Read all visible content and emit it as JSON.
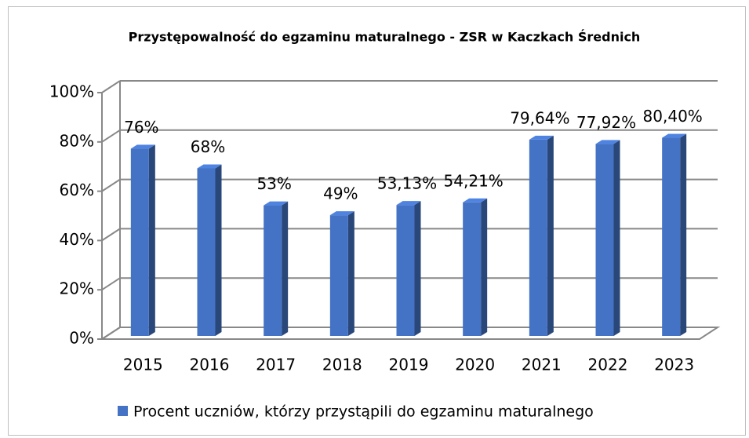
{
  "chart_data": {
    "type": "bar3d",
    "title": "Przystępowalność do egzaminu maturalnego - ZSR w Kaczkach Średnich",
    "categories": [
      "2015",
      "2016",
      "2017",
      "2018",
      "2019",
      "2020",
      "2021",
      "2022",
      "2023"
    ],
    "series": [
      {
        "name": "Procent uczniów, którzy przystąpili do egzaminu maturalnego",
        "color": "#4472c4",
        "values": [
          76,
          68,
          53,
          49,
          53.13,
          54.21,
          79.64,
          77.92,
          80.4
        ],
        "value_labels": [
          "76%",
          "68%",
          "53%",
          "49%",
          "53,13%",
          "54,21%",
          "79,64%",
          "77,92%",
          "80,40%"
        ]
      }
    ],
    "ylim": [
      0,
      100
    ],
    "yticks": [
      {
        "value": 0,
        "label": "0%"
      },
      {
        "value": 20,
        "label": "20%"
      },
      {
        "value": 40,
        "label": "40%"
      },
      {
        "value": 60,
        "label": "60%"
      },
      {
        "value": 80,
        "label": "80%"
      },
      {
        "value": 100,
        "label": "100%"
      }
    ],
    "grid": true,
    "legend": "bottom"
  }
}
